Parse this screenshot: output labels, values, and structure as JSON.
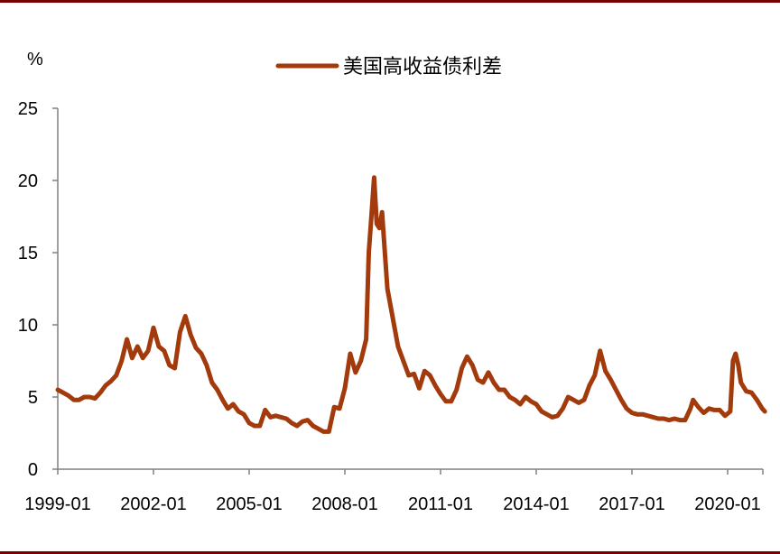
{
  "chart_data": {
    "type": "line",
    "unit": "%",
    "ylim": [
      0,
      25
    ],
    "yticks": [
      0,
      5,
      10,
      15,
      20,
      25
    ],
    "xlim": [
      "1999-01",
      "2021-07"
    ],
    "xticks": [
      "1999-01",
      "2002-01",
      "2005-01",
      "2008-01",
      "2011-01",
      "2014-01",
      "2017-01",
      "2020-01"
    ],
    "grid": false,
    "legend": "top-center",
    "colors": {
      "series": "#a33a0c",
      "axis": "#808080",
      "frame": "#7a0000"
    },
    "series": [
      {
        "name": "美国高收益债利差",
        "points": [
          [
            "1999-01",
            5.5
          ],
          [
            "1999-03",
            5.3
          ],
          [
            "1999-05",
            5.1
          ],
          [
            "1999-07",
            4.8
          ],
          [
            "1999-09",
            4.8
          ],
          [
            "1999-11",
            5.0
          ],
          [
            "2000-01",
            5.0
          ],
          [
            "2000-03",
            4.9
          ],
          [
            "2000-05",
            5.3
          ],
          [
            "2000-07",
            5.8
          ],
          [
            "2000-09",
            6.1
          ],
          [
            "2000-11",
            6.5
          ],
          [
            "2001-01",
            7.5
          ],
          [
            "2001-03",
            9.0
          ],
          [
            "2001-05",
            7.7
          ],
          [
            "2001-07",
            8.5
          ],
          [
            "2001-09",
            7.7
          ],
          [
            "2001-11",
            8.2
          ],
          [
            "2002-01",
            9.8
          ],
          [
            "2002-03",
            8.5
          ],
          [
            "2002-05",
            8.2
          ],
          [
            "2002-07",
            7.2
          ],
          [
            "2002-09",
            7.0
          ],
          [
            "2002-11",
            9.5
          ],
          [
            "2003-01",
            10.6
          ],
          [
            "2003-03",
            9.3
          ],
          [
            "2003-05",
            8.4
          ],
          [
            "2003-07",
            8.0
          ],
          [
            "2003-09",
            7.2
          ],
          [
            "2003-11",
            6.0
          ],
          [
            "2004-01",
            5.5
          ],
          [
            "2004-03",
            4.8
          ],
          [
            "2004-05",
            4.2
          ],
          [
            "2004-07",
            4.5
          ],
          [
            "2004-09",
            4.0
          ],
          [
            "2004-11",
            3.8
          ],
          [
            "2005-01",
            3.2
          ],
          [
            "2005-03",
            3.0
          ],
          [
            "2005-05",
            3.0
          ],
          [
            "2005-07",
            4.1
          ],
          [
            "2005-09",
            3.6
          ],
          [
            "2005-11",
            3.7
          ],
          [
            "2006-01",
            3.6
          ],
          [
            "2006-03",
            3.5
          ],
          [
            "2006-05",
            3.2
          ],
          [
            "2006-07",
            3.0
          ],
          [
            "2006-09",
            3.3
          ],
          [
            "2006-11",
            3.4
          ],
          [
            "2007-01",
            3.0
          ],
          [
            "2007-03",
            2.8
          ],
          [
            "2007-05",
            2.6
          ],
          [
            "2007-07",
            2.6
          ],
          [
            "2007-09",
            4.3
          ],
          [
            "2007-11",
            4.2
          ],
          [
            "2008-01",
            5.6
          ],
          [
            "2008-03",
            8.0
          ],
          [
            "2008-05",
            6.7
          ],
          [
            "2008-07",
            7.5
          ],
          [
            "2008-09",
            9.0
          ],
          [
            "2008-10",
            15.0
          ],
          [
            "2008-11",
            17.5
          ],
          [
            "2008-12",
            20.2
          ],
          [
            "2009-01",
            17.0
          ],
          [
            "2009-02",
            16.7
          ],
          [
            "2009-03",
            17.8
          ],
          [
            "2009-05",
            12.5
          ],
          [
            "2009-07",
            10.5
          ],
          [
            "2009-09",
            8.5
          ],
          [
            "2009-11",
            7.5
          ],
          [
            "2010-01",
            6.5
          ],
          [
            "2010-03",
            6.6
          ],
          [
            "2010-05",
            5.6
          ],
          [
            "2010-07",
            6.8
          ],
          [
            "2010-09",
            6.5
          ],
          [
            "2010-11",
            5.8
          ],
          [
            "2011-01",
            5.2
          ],
          [
            "2011-03",
            4.7
          ],
          [
            "2011-05",
            4.7
          ],
          [
            "2011-07",
            5.5
          ],
          [
            "2011-09",
            7.0
          ],
          [
            "2011-11",
            7.8
          ],
          [
            "2012-01",
            7.2
          ],
          [
            "2012-03",
            6.2
          ],
          [
            "2012-05",
            6.0
          ],
          [
            "2012-07",
            6.7
          ],
          [
            "2012-09",
            6.0
          ],
          [
            "2012-11",
            5.5
          ],
          [
            "2013-01",
            5.5
          ],
          [
            "2013-03",
            5.0
          ],
          [
            "2013-05",
            4.8
          ],
          [
            "2013-07",
            4.5
          ],
          [
            "2013-09",
            5.0
          ],
          [
            "2013-11",
            4.7
          ],
          [
            "2014-01",
            4.5
          ],
          [
            "2014-03",
            4.0
          ],
          [
            "2014-05",
            3.8
          ],
          [
            "2014-07",
            3.6
          ],
          [
            "2014-09",
            3.7
          ],
          [
            "2014-11",
            4.2
          ],
          [
            "2015-01",
            5.0
          ],
          [
            "2015-03",
            4.8
          ],
          [
            "2015-05",
            4.6
          ],
          [
            "2015-07",
            4.8
          ],
          [
            "2015-09",
            5.8
          ],
          [
            "2015-11",
            6.5
          ],
          [
            "2016-01",
            8.2
          ],
          [
            "2016-03",
            6.8
          ],
          [
            "2016-05",
            6.2
          ],
          [
            "2016-07",
            5.5
          ],
          [
            "2016-09",
            4.8
          ],
          [
            "2016-11",
            4.2
          ],
          [
            "2017-01",
            3.9
          ],
          [
            "2017-03",
            3.8
          ],
          [
            "2017-05",
            3.8
          ],
          [
            "2017-07",
            3.7
          ],
          [
            "2017-09",
            3.6
          ],
          [
            "2017-11",
            3.5
          ],
          [
            "2018-01",
            3.5
          ],
          [
            "2018-03",
            3.4
          ],
          [
            "2018-05",
            3.5
          ],
          [
            "2018-07",
            3.4
          ],
          [
            "2018-09",
            3.4
          ],
          [
            "2018-11",
            4.2
          ],
          [
            "2018-12",
            4.8
          ],
          [
            "2019-02",
            4.3
          ],
          [
            "2019-04",
            3.9
          ],
          [
            "2019-06",
            4.2
          ],
          [
            "2019-08",
            4.1
          ],
          [
            "2019-10",
            4.1
          ],
          [
            "2019-12",
            3.7
          ],
          [
            "2020-02",
            4.0
          ],
          [
            "2020-03",
            7.5
          ],
          [
            "2020-04",
            8.0
          ],
          [
            "2020-05",
            7.2
          ],
          [
            "2020-06",
            6.0
          ],
          [
            "2020-08",
            5.4
          ],
          [
            "2020-10",
            5.3
          ],
          [
            "2020-12",
            4.8
          ],
          [
            "2021-02",
            4.2
          ],
          [
            "2021-03",
            4.0
          ]
        ]
      }
    ]
  }
}
